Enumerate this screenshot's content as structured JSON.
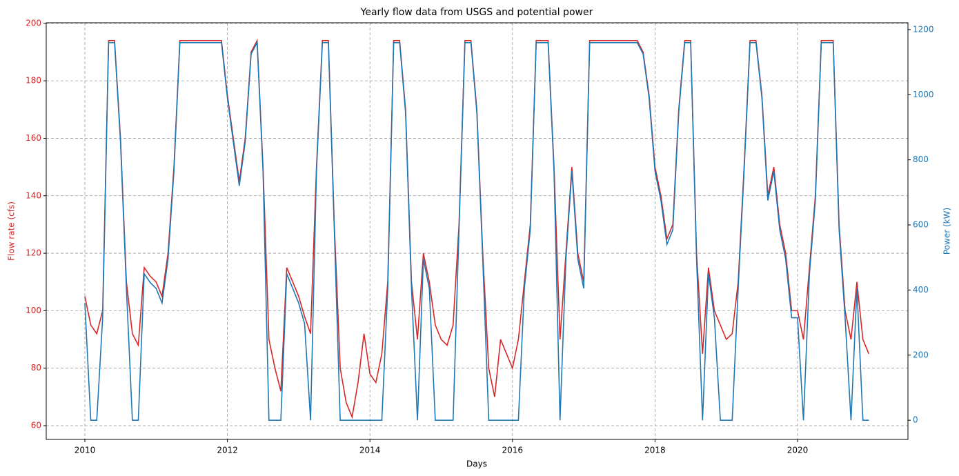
{
  "chart_data": {
    "type": "line",
    "title": "Yearly flow data from USGS and potential power",
    "xlabel": "Days",
    "ylabel": "Flow rate (cfs)",
    "y2label": "Power (kW)",
    "x": [
      2010,
      2010.083,
      2010.167,
      2010.25,
      2010.333,
      2010.417,
      2010.5,
      2010.583,
      2010.667,
      2010.75,
      2010.833,
      2010.917,
      2011,
      2011.083,
      2011.167,
      2011.25,
      2011.333,
      2011.417,
      2011.5,
      2011.583,
      2011.667,
      2011.75,
      2011.833,
      2011.917,
      2012,
      2012.083,
      2012.167,
      2012.25,
      2012.333,
      2012.417,
      2012.5,
      2012.583,
      2012.667,
      2012.75,
      2012.833,
      2012.917,
      2013,
      2013.083,
      2013.167,
      2013.25,
      2013.333,
      2013.417,
      2013.5,
      2013.583,
      2013.667,
      2013.75,
      2013.833,
      2013.917,
      2014,
      2014.083,
      2014.167,
      2014.25,
      2014.333,
      2014.417,
      2014.5,
      2014.583,
      2014.667,
      2014.75,
      2014.833,
      2014.917,
      2015,
      2015.083,
      2015.167,
      2015.25,
      2015.333,
      2015.417,
      2015.5,
      2015.583,
      2015.667,
      2015.75,
      2015.833,
      2015.917,
      2016,
      2016.083,
      2016.167,
      2016.25,
      2016.333,
      2016.417,
      2016.5,
      2016.583,
      2016.667,
      2016.75,
      2016.833,
      2016.917,
      2017,
      2017.083,
      2017.167,
      2017.25,
      2017.333,
      2017.417,
      2017.5,
      2017.583,
      2017.667,
      2017.75,
      2017.833,
      2017.917,
      2018,
      2018.083,
      2018.167,
      2018.25,
      2018.333,
      2018.417,
      2018.5,
      2018.583,
      2018.667,
      2018.75,
      2018.833,
      2018.917,
      2019,
      2019.083,
      2019.167,
      2019.25,
      2019.333,
      2019.417,
      2019.5,
      2019.583,
      2019.667,
      2019.75,
      2019.833,
      2019.917,
      2020,
      2020.083,
      2020.167,
      2020.25,
      2020.333,
      2020.417,
      2020.5,
      2020.583,
      2020.667,
      2020.75,
      2020.833,
      2020.917,
      2021
    ],
    "series": [
      {
        "color": "#d62728",
        "values": [
          105,
          95,
          92,
          100,
          194,
          194,
          160,
          110,
          92,
          88,
          115,
          112,
          110,
          105,
          120,
          150,
          194,
          194,
          194,
          194,
          194,
          194,
          194,
          194,
          175,
          160,
          145,
          160,
          190,
          194,
          150,
          90,
          80,
          72,
          115,
          110,
          105,
          98,
          92,
          150,
          194,
          194,
          130,
          80,
          68,
          63,
          75,
          92,
          78,
          75,
          85,
          110,
          194,
          194,
          170,
          110,
          90,
          120,
          110,
          95,
          90,
          88,
          95,
          130,
          194,
          194,
          170,
          120,
          80,
          70,
          90,
          85,
          80,
          90,
          110,
          130,
          194,
          194,
          194,
          150,
          90,
          120,
          150,
          120,
          110,
          194,
          194,
          194,
          194,
          194,
          194,
          194,
          194,
          194,
          190,
          175,
          150,
          140,
          125,
          130,
          170,
          194,
          194,
          120,
          85,
          115,
          100,
          95,
          90,
          92,
          110,
          150,
          194,
          194,
          175,
          140,
          150,
          130,
          120,
          100,
          100,
          90,
          115,
          140,
          194,
          194,
          194,
          130,
          100,
          90,
          110,
          90,
          85
        ]
      },
      {
        "color": "#1f77b4",
        "axis": "y2",
        "values": [
          360,
          0,
          0,
          315,
          1160,
          1160,
          855,
          405,
          0,
          0,
          450,
          423,
          405,
          360,
          495,
          765,
          1160,
          1160,
          1160,
          1160,
          1160,
          1160,
          1160,
          1160,
          990,
          855,
          720,
          855,
          1125,
          1160,
          765,
          0,
          0,
          0,
          450,
          405,
          360,
          297,
          0,
          765,
          1160,
          1160,
          585,
          0,
          0,
          0,
          0,
          0,
          0,
          0,
          0,
          405,
          1160,
          1160,
          945,
          405,
          0,
          495,
          405,
          0,
          0,
          0,
          0,
          585,
          1160,
          1160,
          945,
          495,
          0,
          0,
          0,
          0,
          0,
          0,
          405,
          585,
          1160,
          1160,
          1160,
          765,
          0,
          495,
          765,
          495,
          405,
          1160,
          1160,
          1160,
          1160,
          1160,
          1160,
          1160,
          1160,
          1160,
          1125,
          990,
          765,
          675,
          540,
          585,
          945,
          1160,
          1160,
          495,
          0,
          450,
          315,
          0,
          0,
          0,
          405,
          765,
          1160,
          1160,
          990,
          675,
          765,
          585,
          495,
          315,
          315,
          0,
          450,
          675,
          1160,
          1160,
          1160,
          585,
          315,
          0,
          405,
          0,
          0
        ]
      }
    ],
    "xlim": [
      2009.458,
      2021.549
    ],
    "xticks": [
      2010,
      2012,
      2014,
      2016,
      2018,
      2020
    ],
    "ylim": [
      55.2,
      200.2
    ],
    "yticks": [
      60,
      80,
      100,
      120,
      140,
      160,
      180,
      200
    ],
    "y2lim": [
      -59,
      1221
    ],
    "y2ticks": [
      0,
      200,
      400,
      600,
      800,
      1000,
      1200
    ],
    "grid": true
  }
}
